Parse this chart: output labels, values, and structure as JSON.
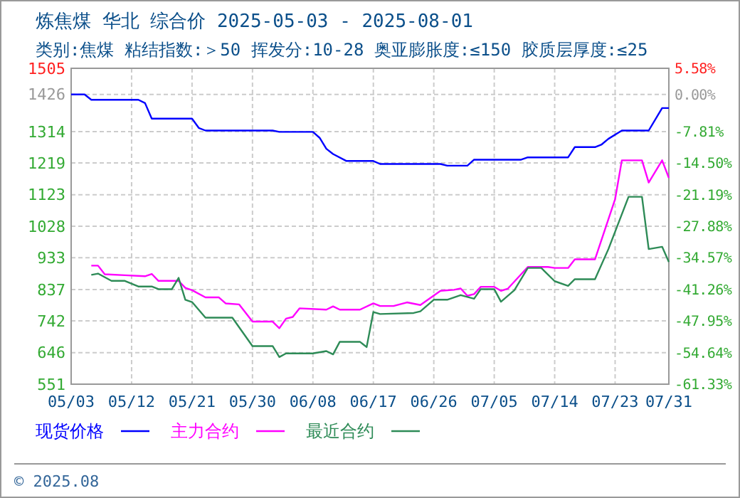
{
  "chart_data": {
    "type": "line",
    "title": "炼焦煤 华北 综合价 2025-05-03 - 2025-08-01",
    "subtitle": "类别:焦煤 粘结指数:＞50 挥发分:10-28 奥亚膨胀度:≤150 胶质层厚度:≤25",
    "xlim": [
      "2025-05-03",
      "2025-07-31"
    ],
    "xticks": [
      {
        "value": "2025-05-03",
        "label": "05/03"
      },
      {
        "value": "2025-05-12",
        "label": "05/12"
      },
      {
        "value": "2025-05-21",
        "label": "05/21"
      },
      {
        "value": "2025-05-30",
        "label": "05/30"
      },
      {
        "value": "2025-06-08",
        "label": "06/08"
      },
      {
        "value": "2025-06-17",
        "label": "06/17"
      },
      {
        "value": "2025-06-26",
        "label": "06/26"
      },
      {
        "value": "2025-07-05",
        "label": "07/05"
      },
      {
        "value": "2025-07-14",
        "label": "07/14"
      },
      {
        "value": "2025-07-23",
        "label": "07/23"
      },
      {
        "value": "2025-07-31",
        "label": "07/31"
      }
    ],
    "ylim": [
      551,
      1505
    ],
    "yticks": [
      551,
      646,
      742,
      837,
      933,
      1028,
      1123,
      1219,
      1314,
      1426,
      1505
    ],
    "y2lim": [
      -61.33,
      5.58
    ],
    "y2ticks": [
      {
        "value": -61.33,
        "label": "-61.33%"
      },
      {
        "value": -54.64,
        "label": "-54.64%"
      },
      {
        "value": -47.95,
        "label": "-47.95%"
      },
      {
        "value": -41.26,
        "label": "-41.26%"
      },
      {
        "value": -34.57,
        "label": "-34.57%"
      },
      {
        "value": -27.88,
        "label": "-27.88%"
      },
      {
        "value": -21.19,
        "label": "-21.19%"
      },
      {
        "value": -14.5,
        "label": "-14.50%"
      },
      {
        "value": -7.81,
        "label": "-7.81%"
      },
      {
        "value": 0,
        "label": "0.00%"
      },
      {
        "value": 5.58,
        "label": "5.58%"
      }
    ],
    "grid": true,
    "legend": "bottom",
    "marker": "none",
    "line_style": "solid",
    "annotations": [
      "© 2025.08"
    ],
    "series": [
      {
        "name": "现货价格",
        "color": "#0000ff",
        "x": [
          "2025-05-03",
          "2025-05-05",
          "2025-05-06",
          "2025-05-13",
          "2025-05-14",
          "2025-05-15",
          "2025-05-21",
          "2025-05-22",
          "2025-05-23",
          "2025-06-02",
          "2025-06-03",
          "2025-06-08",
          "2025-06-09",
          "2025-06-10",
          "2025-06-11",
          "2025-06-13",
          "2025-06-17",
          "2025-06-18",
          "2025-06-27",
          "2025-06-28",
          "2025-07-01",
          "2025-07-02",
          "2025-07-09",
          "2025-07-10",
          "2025-07-16",
          "2025-07-17",
          "2025-07-20",
          "2025-07-21",
          "2025-07-22",
          "2025-07-24",
          "2025-07-28",
          "2025-07-30",
          "2025-07-31"
        ],
        "values": [
          1426,
          1426,
          1410,
          1410,
          1400,
          1353,
          1353,
          1325,
          1317,
          1317,
          1313,
          1313,
          1295,
          1262,
          1246,
          1225,
          1225,
          1216,
          1216,
          1211,
          1211,
          1229,
          1229,
          1236,
          1236,
          1267,
          1267,
          1275,
          1292,
          1317,
          1317,
          1385,
          1385
        ]
      },
      {
        "name": "主力合约",
        "color": "#ff00ff",
        "x": [
          "2025-05-06",
          "2025-05-07",
          "2025-05-08",
          "2025-05-11",
          "2025-05-14",
          "2025-05-15",
          "2025-05-16",
          "2025-05-19",
          "2025-05-20",
          "2025-05-21",
          "2025-05-23",
          "2025-05-25",
          "2025-05-26",
          "2025-05-28",
          "2025-05-30",
          "2025-06-02",
          "2025-06-03",
          "2025-06-04",
          "2025-06-05",
          "2025-06-06",
          "2025-06-10",
          "2025-06-11",
          "2025-06-12",
          "2025-06-15",
          "2025-06-17",
          "2025-06-18",
          "2025-06-20",
          "2025-06-22",
          "2025-06-24",
          "2025-06-27",
          "2025-06-29",
          "2025-06-30",
          "2025-07-01",
          "2025-07-02",
          "2025-07-03",
          "2025-07-05",
          "2025-07-06",
          "2025-07-07",
          "2025-07-10",
          "2025-07-13",
          "2025-07-14",
          "2025-07-16",
          "2025-07-17",
          "2025-07-20",
          "2025-07-23",
          "2025-07-24",
          "2025-07-27",
          "2025-07-28",
          "2025-07-30",
          "2025-07-31"
        ],
        "values": [
          909,
          909,
          883,
          880,
          877,
          884,
          863,
          863,
          842,
          835,
          813,
          813,
          795,
          792,
          740,
          740,
          720,
          749,
          754,
          780,
          776,
          786,
          776,
          776,
          795,
          787,
          787,
          798,
          790,
          833,
          836,
          840,
          818,
          823,
          845,
          845,
          833,
          839,
          905,
          905,
          902,
          902,
          928,
          928,
          1110,
          1227,
          1227,
          1160,
          1227,
          1174
        ]
      },
      {
        "name": "最近合约",
        "color": "#2e8b57",
        "x": [
          "2025-05-06",
          "2025-05-07",
          "2025-05-09",
          "2025-05-11",
          "2025-05-13",
          "2025-05-15",
          "2025-05-16",
          "2025-05-18",
          "2025-05-19",
          "2025-05-20",
          "2025-05-21",
          "2025-05-23",
          "2025-05-27",
          "2025-05-30",
          "2025-06-02",
          "2025-06-03",
          "2025-06-04",
          "2025-06-08",
          "2025-06-10",
          "2025-06-11",
          "2025-06-12",
          "2025-06-15",
          "2025-06-16",
          "2025-06-17",
          "2025-06-18",
          "2025-06-23",
          "2025-06-24",
          "2025-06-26",
          "2025-06-28",
          "2025-06-30",
          "2025-07-02",
          "2025-07-03",
          "2025-07-05",
          "2025-07-06",
          "2025-07-08",
          "2025-07-10",
          "2025-07-12",
          "2025-07-14",
          "2025-07-16",
          "2025-07-17",
          "2025-07-20",
          "2025-07-22",
          "2025-07-25",
          "2025-07-27",
          "2025-07-28",
          "2025-07-30",
          "2025-07-31"
        ],
        "values": [
          881,
          885,
          863,
          863,
          846,
          846,
          838,
          838,
          872,
          806,
          799,
          752,
          752,
          666,
          666,
          633,
          644,
          644,
          651,
          641,
          679,
          679,
          663,
          769,
          763,
          766,
          771,
          806,
          806,
          820,
          809,
          838,
          838,
          800,
          835,
          902,
          902,
          862,
          848,
          868,
          868,
          959,
          1117,
          1117,
          959,
          966,
          920
        ]
      }
    ]
  }
}
